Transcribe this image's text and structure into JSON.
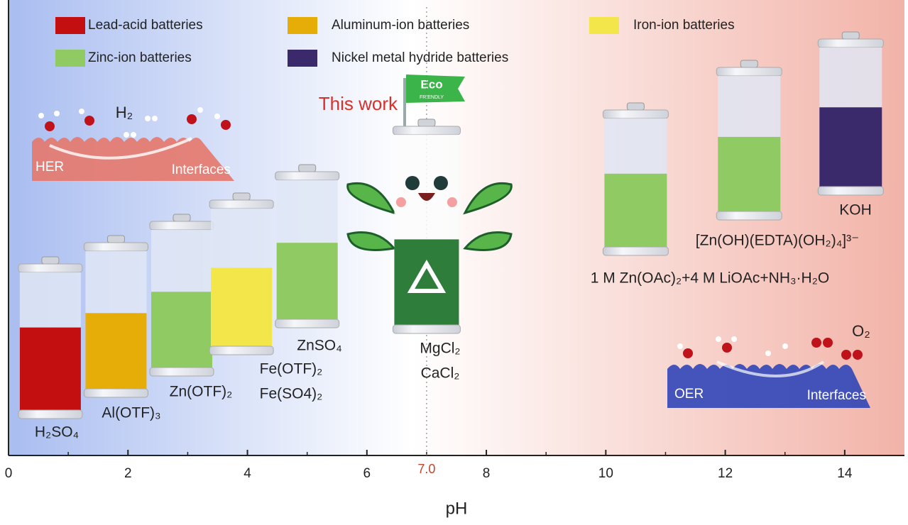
{
  "legend": [
    {
      "label": "Lead-acid batteries",
      "color": "#c30f0f"
    },
    {
      "label": "Aluminum-ion batteries",
      "color": "#e6ad08"
    },
    {
      "label": "Iron-ion batteries",
      "color": "#f3e64a"
    },
    {
      "label": "Zinc-ion batteries",
      "color": "#8fcb62"
    },
    {
      "label": "Nickel metal hydride batteries",
      "color": "#3a2a6c"
    }
  ],
  "axis": {
    "label": "pH",
    "lim": [
      0,
      15
    ],
    "ticks": [
      0,
      2,
      4,
      6,
      8,
      10,
      12,
      14
    ],
    "minor_ticks": [
      1,
      3,
      5,
      7,
      9,
      11,
      13
    ],
    "marker": {
      "value": 7,
      "label": "7.0"
    }
  },
  "batteries": [
    {
      "ph": 0.7,
      "fill": 60,
      "color": "#c30f0f",
      "labels": [
        "H₂SO₄"
      ]
    },
    {
      "ph": 1.8,
      "fill": 55,
      "color": "#e6ad08",
      "labels": [
        "Al(OTF)₃"
      ]
    },
    {
      "ph": 2.9,
      "fill": 55,
      "color": "#8fcb62",
      "labels": [
        "Zn(OTF)₂"
      ]
    },
    {
      "ph": 3.9,
      "fill": 57,
      "color": "#f3e64a",
      "labels": [
        "Fe(OTF)₂",
        "Fe(SO4)₂"
      ]
    },
    {
      "ph": 5.0,
      "fill": 55,
      "color": "#8fcb62",
      "labels": [
        "ZnSO₄"
      ]
    },
    {
      "ph": 7.0,
      "fill": 45,
      "color": "#2f7d3a",
      "labels": [
        "MgCl₂",
        "CaCl₂"
      ]
    },
    {
      "ph": 10.5,
      "fill": 57,
      "color": "#8fcb62",
      "labels": [
        "1 M Zn(OAc)₂+4 M LiOAc+NH₃·H₂O"
      ]
    },
    {
      "ph": 12.4,
      "fill": 55,
      "color": "#8fcb62",
      "labels": [
        "[Zn(OH)(EDTA)(OH₂)₄]³⁻"
      ]
    },
    {
      "ph": 14.1,
      "fill": 57,
      "color": "#3a2a6c",
      "labels": [
        "KOH"
      ]
    }
  ],
  "this_work": {
    "label": "This work",
    "flag": [
      "Eco",
      "FRIENDLY"
    ]
  },
  "her": {
    "label": "HER",
    "interface": "Interfaces",
    "gas": "H₂"
  },
  "oer": {
    "label": "OER",
    "interface": "Interfaces",
    "gas": "O₂"
  }
}
